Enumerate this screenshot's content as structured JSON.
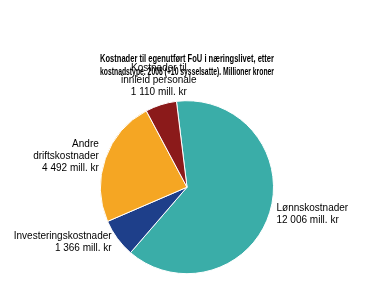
{
  "chart_data": {
    "type": "pie",
    "title": "Kostnader til egenutført FoU i næringslivet, etter\nkostnadstype. 2008 (+10 sysselsatte). Millioner kroner",
    "categories": [
      "Lønnskostnader",
      "Investeringskostnader",
      "Andre\ndriftskostnader",
      "Kostnader til\ninnleid personale"
    ],
    "values": [
      12006,
      1366,
      4492,
      1110
    ],
    "value_labels": [
      "12 006 mill. kr",
      "1 366 mill. kr",
      "4 492 mill. kr",
      "1 110 mill. kr"
    ],
    "colors": [
      "#3aada8",
      "#1e3f8a",
      "#f5a623",
      "#8b1a1a"
    ],
    "data_labels": true,
    "legend": false
  }
}
